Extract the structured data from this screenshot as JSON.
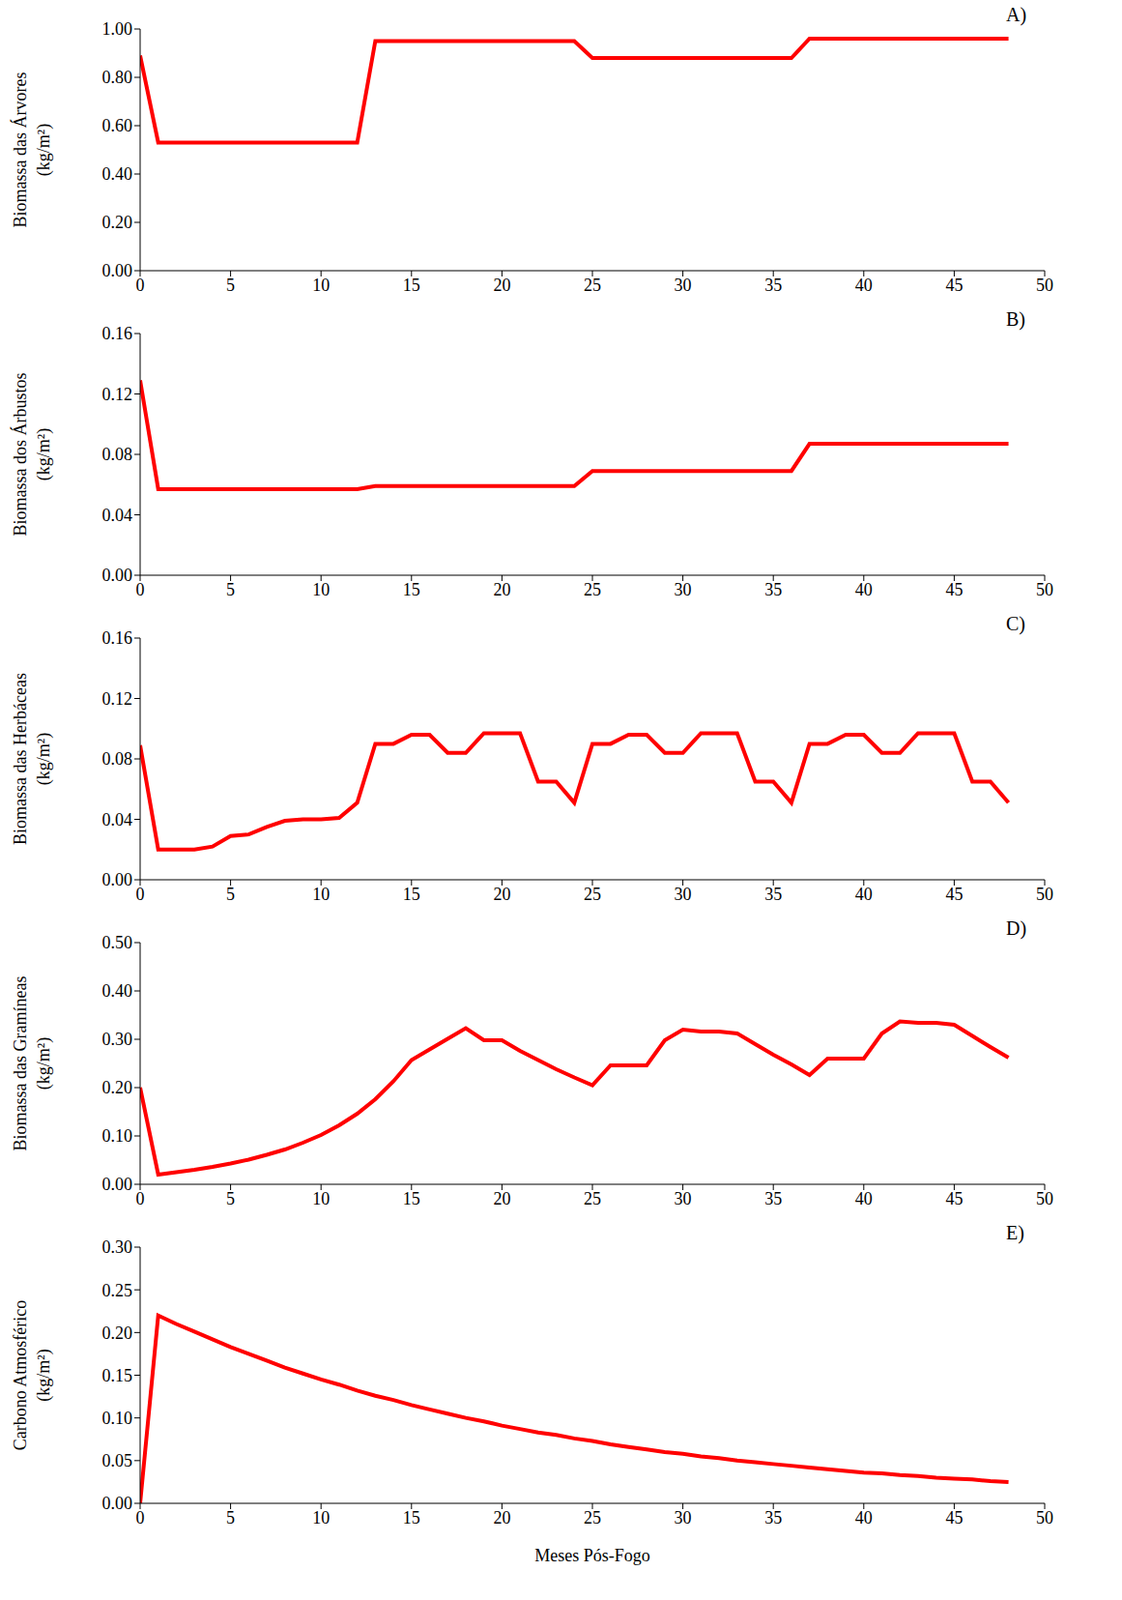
{
  "chart_data": [
    {
      "type": "line",
      "title": "A)",
      "ylabel": "Biomassa das Árvores (kg/m²)",
      "color": "#ff0000",
      "grid": false,
      "x": [
        0,
        1,
        2,
        3,
        4,
        5,
        6,
        7,
        8,
        9,
        10,
        11,
        12,
        13,
        14,
        15,
        16,
        17,
        18,
        19,
        20,
        21,
        22,
        23,
        24,
        25,
        26,
        27,
        28,
        29,
        30,
        31,
        32,
        33,
        34,
        35,
        36,
        37,
        38,
        39,
        40,
        41,
        42,
        43,
        44,
        45,
        46,
        47,
        48
      ],
      "values": [
        0.89,
        0.53,
        0.53,
        0.53,
        0.53,
        0.53,
        0.53,
        0.53,
        0.53,
        0.53,
        0.53,
        0.53,
        0.53,
        0.95,
        0.95,
        0.95,
        0.95,
        0.95,
        0.95,
        0.95,
        0.95,
        0.95,
        0.95,
        0.95,
        0.95,
        0.88,
        0.88,
        0.88,
        0.88,
        0.88,
        0.88,
        0.88,
        0.88,
        0.88,
        0.88,
        0.88,
        0.88,
        0.96,
        0.96,
        0.96,
        0.96,
        0.96,
        0.96,
        0.96,
        0.96,
        0.96,
        0.96,
        0.96,
        0.96
      ],
      "xlim": [
        0,
        50
      ],
      "xticks": [
        0,
        5,
        10,
        15,
        20,
        25,
        30,
        35,
        40,
        45,
        50
      ],
      "ylim": [
        0,
        1
      ],
      "yticks": [
        {
          "value": 0,
          "label": "0.00"
        },
        {
          "value": 0.2,
          "label": "0.20"
        },
        {
          "value": 0.4,
          "label": "0.40"
        },
        {
          "value": 0.6,
          "label": "0.60"
        },
        {
          "value": 0.8,
          "label": "0.80"
        },
        {
          "value": 1,
          "label": "1.00"
        }
      ]
    },
    {
      "type": "line",
      "title": "B)",
      "ylabel": "Biomassa dos Árbustos (kg/m²)",
      "color": "#ff0000",
      "grid": false,
      "x": [
        0,
        1,
        2,
        3,
        4,
        5,
        6,
        7,
        8,
        9,
        10,
        11,
        12,
        13,
        14,
        15,
        16,
        17,
        18,
        19,
        20,
        21,
        22,
        23,
        24,
        25,
        26,
        27,
        28,
        29,
        30,
        31,
        32,
        33,
        34,
        35,
        36,
        37,
        38,
        39,
        40,
        41,
        42,
        43,
        44,
        45,
        46,
        47,
        48
      ],
      "values": [
        0.129,
        0.057,
        0.057,
        0.057,
        0.057,
        0.057,
        0.057,
        0.057,
        0.057,
        0.057,
        0.057,
        0.057,
        0.057,
        0.059,
        0.059,
        0.059,
        0.059,
        0.059,
        0.059,
        0.059,
        0.059,
        0.059,
        0.059,
        0.059,
        0.059,
        0.069,
        0.069,
        0.069,
        0.069,
        0.069,
        0.069,
        0.069,
        0.069,
        0.069,
        0.069,
        0.069,
        0.069,
        0.087,
        0.087,
        0.087,
        0.087,
        0.087,
        0.087,
        0.087,
        0.087,
        0.087,
        0.087,
        0.087,
        0.087
      ],
      "xlim": [
        0,
        50
      ],
      "xticks": [
        0,
        5,
        10,
        15,
        20,
        25,
        30,
        35,
        40,
        45,
        50
      ],
      "ylim": [
        0,
        0.16
      ],
      "yticks": [
        {
          "value": 0,
          "label": "0.00"
        },
        {
          "value": 0.04,
          "label": "0.04"
        },
        {
          "value": 0.08,
          "label": "0.08"
        },
        {
          "value": 0.12,
          "label": "0.12"
        },
        {
          "value": 0.16,
          "label": "0.16"
        }
      ]
    },
    {
      "type": "line",
      "title": "C)",
      "ylabel": "Biomassa das Herbáceas (kg/m²)",
      "color": "#ff0000",
      "grid": false,
      "x": [
        0,
        1,
        2,
        3,
        4,
        5,
        6,
        7,
        8,
        9,
        10,
        11,
        12,
        13,
        14,
        15,
        16,
        17,
        18,
        19,
        20,
        21,
        22,
        23,
        24,
        25,
        26,
        27,
        28,
        29,
        30,
        31,
        32,
        33,
        34,
        35,
        36,
        37,
        38,
        39,
        40,
        41,
        42,
        43,
        44,
        45,
        46,
        47,
        48
      ],
      "values": [
        0.089,
        0.02,
        0.02,
        0.02,
        0.022,
        0.029,
        0.03,
        0.035,
        0.039,
        0.04,
        0.04,
        0.041,
        0.051,
        0.09,
        0.09,
        0.096,
        0.096,
        0.084,
        0.084,
        0.097,
        0.097,
        0.097,
        0.065,
        0.065,
        0.051,
        0.09,
        0.09,
        0.096,
        0.096,
        0.084,
        0.084,
        0.097,
        0.097,
        0.097,
        0.065,
        0.065,
        0.051,
        0.09,
        0.09,
        0.096,
        0.096,
        0.084,
        0.084,
        0.097,
        0.097,
        0.097,
        0.065,
        0.065,
        0.051
      ],
      "xlim": [
        0,
        50
      ],
      "xticks": [
        0,
        5,
        10,
        15,
        20,
        25,
        30,
        35,
        40,
        45,
        50
      ],
      "ylim": [
        0,
        0.16
      ],
      "yticks": [
        {
          "value": 0,
          "label": "0.00"
        },
        {
          "value": 0.04,
          "label": "0.04"
        },
        {
          "value": 0.08,
          "label": "0.08"
        },
        {
          "value": 0.12,
          "label": "0.12"
        },
        {
          "value": 0.16,
          "label": "0.16"
        }
      ]
    },
    {
      "type": "line",
      "title": "D)",
      "ylabel": "Biomassa das Gramíneas (kg/m²)",
      "color": "#ff0000",
      "grid": false,
      "x": [
        0,
        1,
        2,
        3,
        4,
        5,
        6,
        7,
        8,
        9,
        10,
        11,
        12,
        13,
        14,
        15,
        16,
        17,
        18,
        19,
        20,
        21,
        22,
        23,
        24,
        25,
        26,
        27,
        28,
        29,
        30,
        31,
        32,
        33,
        34,
        35,
        36,
        37,
        38,
        39,
        40,
        41,
        42,
        43,
        44,
        45,
        46,
        47,
        48
      ],
      "values": [
        0.2,
        0.02,
        0.025,
        0.03,
        0.036,
        0.043,
        0.051,
        0.061,
        0.072,
        0.086,
        0.102,
        0.122,
        0.146,
        0.176,
        0.213,
        0.257,
        0.279,
        0.301,
        0.323,
        0.298,
        0.298,
        0.276,
        0.257,
        0.238,
        0.221,
        0.205,
        0.246,
        0.246,
        0.246,
        0.298,
        0.32,
        0.316,
        0.316,
        0.312,
        0.29,
        0.268,
        0.248,
        0.226,
        0.26,
        0.26,
        0.26,
        0.312,
        0.337,
        0.334,
        0.334,
        0.33,
        0.307,
        0.284,
        0.262
      ],
      "xlim": [
        0,
        50
      ],
      "xticks": [
        0,
        5,
        10,
        15,
        20,
        25,
        30,
        35,
        40,
        45,
        50
      ],
      "ylim": [
        0,
        0.5
      ],
      "yticks": [
        {
          "value": 0,
          "label": "0.00"
        },
        {
          "value": 0.1,
          "label": "0.10"
        },
        {
          "value": 0.2,
          "label": "0.20"
        },
        {
          "value": 0.3,
          "label": "0.30"
        },
        {
          "value": 0.4,
          "label": "0.40"
        },
        {
          "value": 0.5,
          "label": "0.50"
        }
      ]
    },
    {
      "type": "line",
      "title": "E)",
      "ylabel": "Carbono Atmosférico (kg/m²)",
      "xlabel": "Meses Pós-Fogo",
      "color": "#ff0000",
      "grid": false,
      "x": [
        0,
        1,
        2,
        3,
        4,
        5,
        6,
        7,
        8,
        9,
        10,
        11,
        12,
        13,
        14,
        15,
        16,
        17,
        18,
        19,
        20,
        21,
        22,
        23,
        24,
        25,
        26,
        27,
        28,
        29,
        30,
        31,
        32,
        33,
        34,
        35,
        36,
        37,
        38,
        39,
        40,
        41,
        42,
        43,
        44,
        45,
        46,
        47,
        48
      ],
      "values": [
        0,
        0.22,
        0.21,
        0.201,
        0.192,
        0.183,
        0.175,
        0.167,
        0.159,
        0.152,
        0.145,
        0.139,
        0.132,
        0.126,
        0.121,
        0.115,
        0.11,
        0.105,
        0.1,
        0.096,
        0.091,
        0.087,
        0.083,
        0.08,
        0.076,
        0.073,
        0.069,
        0.066,
        0.063,
        0.06,
        0.058,
        0.055,
        0.053,
        0.05,
        0.048,
        0.046,
        0.044,
        0.042,
        0.04,
        0.038,
        0.036,
        0.035,
        0.033,
        0.032,
        0.03,
        0.029,
        0.028,
        0.026,
        0.025
      ],
      "xlim": [
        0,
        50
      ],
      "xticks": [
        0,
        5,
        10,
        15,
        20,
        25,
        30,
        35,
        40,
        45,
        50
      ],
      "ylim": [
        0,
        0.3
      ],
      "yticks": [
        {
          "value": 0,
          "label": "0.00"
        },
        {
          "value": 0.05,
          "label": "0.05"
        },
        {
          "value": 0.1,
          "label": "0.10"
        },
        {
          "value": 0.15,
          "label": "0.15"
        },
        {
          "value": 0.2,
          "label": "0.20"
        },
        {
          "value": 0.25,
          "label": "0.25"
        },
        {
          "value": 0.3,
          "label": "0.30"
        }
      ]
    }
  ]
}
